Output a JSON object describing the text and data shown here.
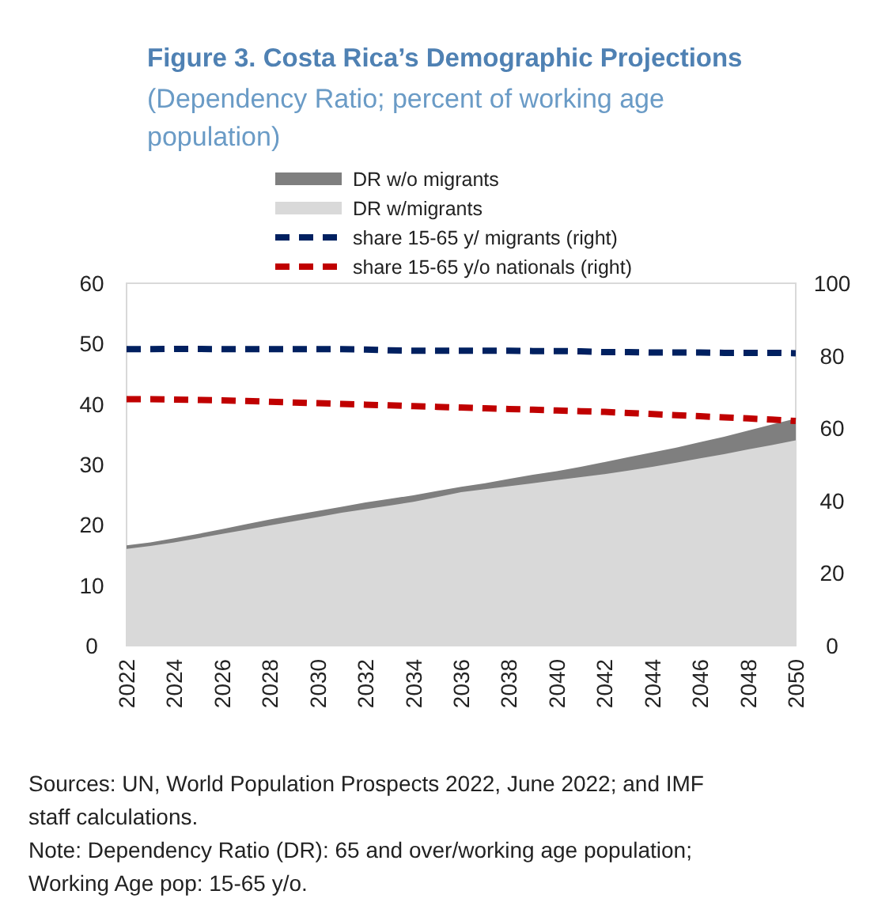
{
  "chart_data": {
    "type": "area",
    "title": "Figure 3. Costa Rica’s Demographic Projections",
    "subtitle": "(Dependency Ratio; percent of working age population)",
    "x": [
      2022,
      2023,
      2024,
      2025,
      2026,
      2027,
      2028,
      2029,
      2030,
      2031,
      2032,
      2033,
      2034,
      2035,
      2036,
      2037,
      2038,
      2039,
      2040,
      2041,
      2042,
      2043,
      2044,
      2045,
      2046,
      2047,
      2048,
      2049,
      2050
    ],
    "series": [
      {
        "name": "DR w/o migrants",
        "color": "#7f7f7f",
        "values": [
          16.6,
          17.1,
          17.8,
          18.5,
          19.3,
          20.1,
          20.9,
          21.6,
          22.3,
          23.0,
          23.7,
          24.3,
          24.9,
          25.6,
          26.3,
          26.9,
          27.6,
          28.3,
          28.9,
          29.6,
          30.4,
          31.2,
          32.0,
          32.8,
          33.7,
          34.6,
          35.6,
          36.6,
          37.6
        ]
      },
      {
        "name": "DR w/migrants",
        "color": "#d9d9d9",
        "values": [
          16.0,
          16.5,
          17.1,
          17.8,
          18.5,
          19.2,
          19.9,
          20.6,
          21.3,
          22.0,
          22.6,
          23.2,
          23.8,
          24.6,
          25.4,
          25.9,
          26.4,
          26.9,
          27.4,
          27.9,
          28.4,
          29.0,
          29.6,
          30.3,
          31.0,
          31.7,
          32.5,
          33.2,
          34.0
        ]
      },
      {
        "name": "share 15-65 y/ migrants (right)",
        "type": "line",
        "axis": "y2",
        "line_style": "dashed",
        "color": "#002060",
        "values": [
          81.8,
          81.8,
          81.9,
          81.9,
          81.8,
          81.8,
          81.8,
          81.8,
          81.8,
          81.8,
          81.7,
          81.5,
          81.4,
          81.4,
          81.4,
          81.4,
          81.4,
          81.3,
          81.3,
          81.2,
          81.0,
          81.0,
          80.9,
          80.9,
          80.9,
          80.8,
          80.8,
          80.8,
          80.7
        ]
      },
      {
        "name": "share 15-65 y/o nationals (right)",
        "type": "line",
        "axis": "y2",
        "line_style": "dashed",
        "color": "#c00000",
        "values": [
          68.0,
          68.0,
          67.9,
          67.8,
          67.7,
          67.5,
          67.3,
          67.1,
          66.9,
          66.7,
          66.5,
          66.3,
          66.1,
          65.9,
          65.7,
          65.5,
          65.3,
          65.1,
          64.9,
          64.7,
          64.5,
          64.2,
          63.9,
          63.6,
          63.3,
          63.0,
          62.7,
          62.4,
          62.0
        ]
      }
    ],
    "xlim": [
      2022,
      2050
    ],
    "xticks": [
      2022,
      2024,
      2026,
      2028,
      2030,
      2032,
      2034,
      2036,
      2038,
      2040,
      2042,
      2044,
      2046,
      2048,
      2050
    ],
    "ylim": [
      0,
      60
    ],
    "yticks": [
      0,
      10,
      20,
      30,
      40,
      50,
      60
    ],
    "y2lim": [
      0,
      100
    ],
    "y2ticks": [
      0,
      20,
      40,
      60,
      80,
      100
    ],
    "grid": false,
    "legend": "top",
    "annotations": [
      "Sources: UN, World Population Prospects 2022, June 2022; and IMF staff calculations.",
      "Note: Dependency Ratio (DR): 65 and over/working age population; Working Age pop: 15-65 y/o."
    ]
  }
}
